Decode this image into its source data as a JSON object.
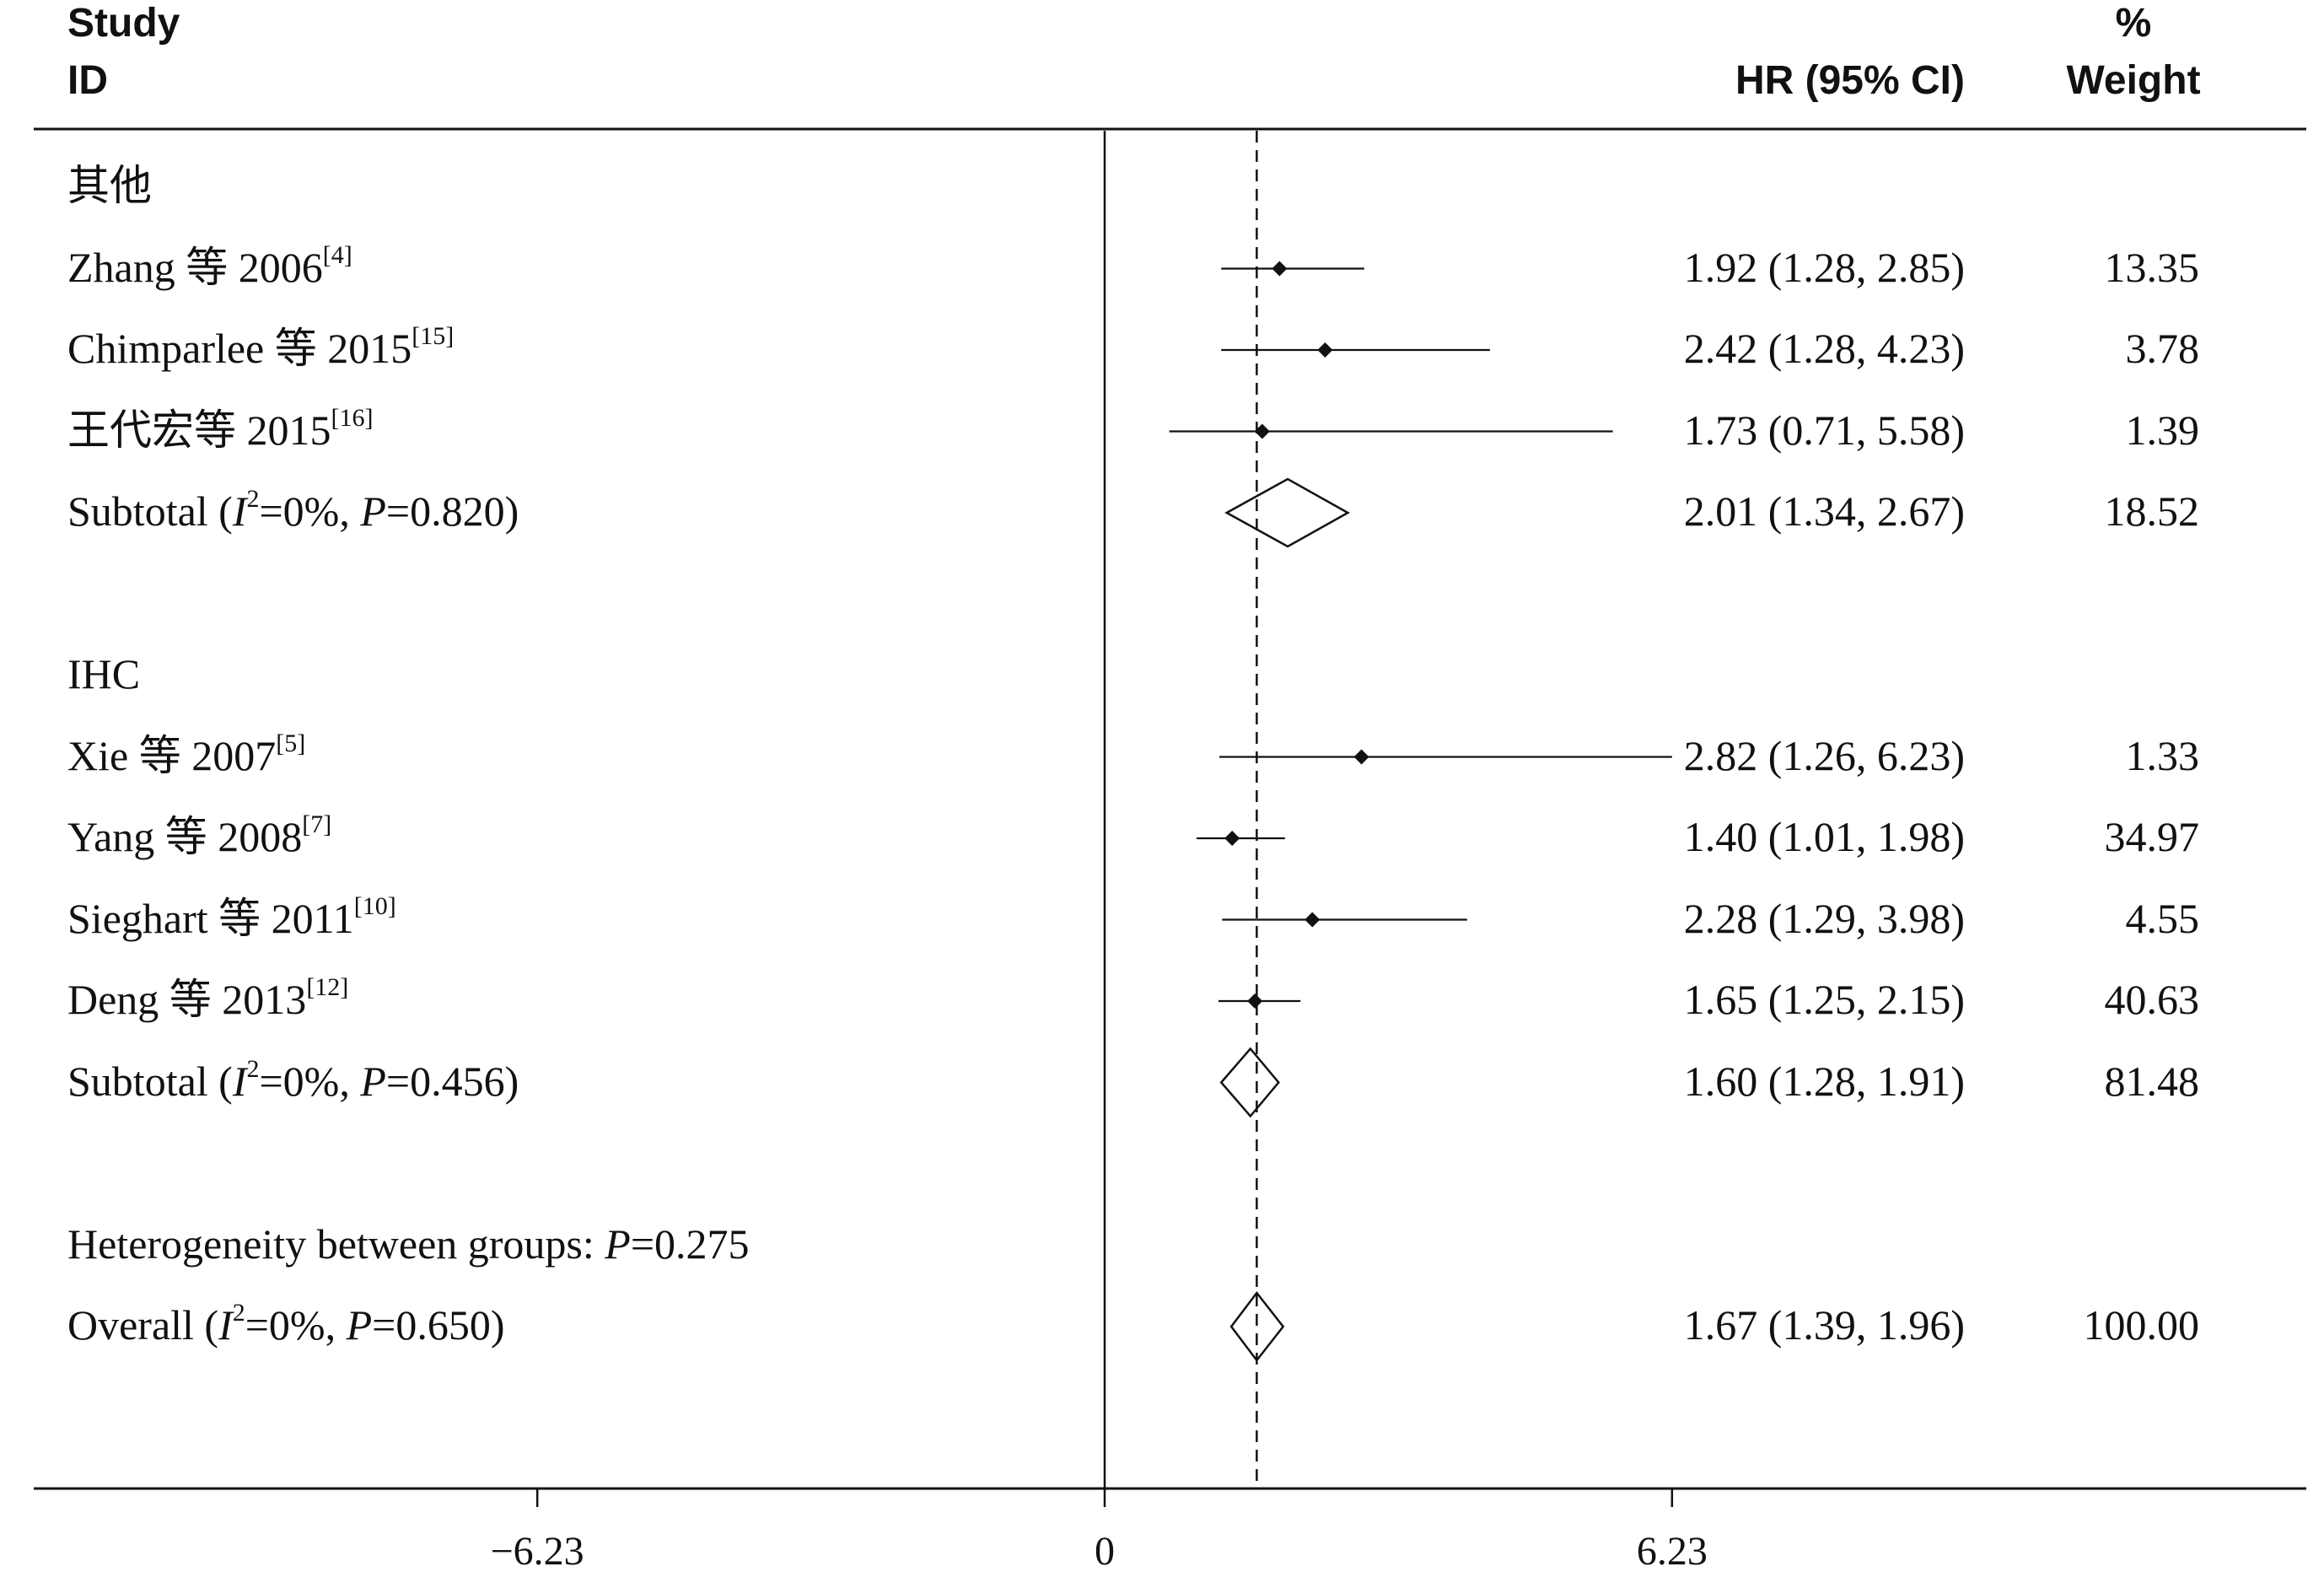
{
  "header": {
    "study": "Study",
    "id": "ID",
    "hr": "HR (95% CI)",
    "pct": "%",
    "weight": "Weight"
  },
  "chart_data": {
    "type": "forest",
    "measure": "HR",
    "x_axis": {
      "ticks": [
        -6.23,
        0,
        6.23
      ],
      "tick_labels": [
        "−6.23",
        "0",
        "6.23"
      ],
      "xlim": [
        -12.4,
        13.4
      ]
    },
    "overall_line": 1.67,
    "groups": [
      {
        "label": "其他",
        "studies": [
          {
            "name": "Zhang 等 2006",
            "ref": "[4]",
            "hr": 1.92,
            "lo": 1.28,
            "hi": 2.85,
            "hr_ci": "1.92 (1.28, 2.85)",
            "weight": "13.35"
          },
          {
            "name": "Chimparlee 等 2015",
            "ref": "[15]",
            "hr": 2.42,
            "lo": 1.28,
            "hi": 4.23,
            "hr_ci": "2.42 (1.28, 4.23)",
            "weight": "3.78"
          },
          {
            "name": "王代宏等 2015",
            "ref": "[16]",
            "hr": 1.73,
            "lo": 0.71,
            "hi": 5.58,
            "hr_ci": "1.73 (0.71, 5.58)",
            "weight": "1.39"
          }
        ],
        "subtotal": {
          "label": "Subtotal",
          "i2": "0%",
          "p": "0.820",
          "hr": 2.01,
          "lo": 1.34,
          "hi": 2.67,
          "hr_ci": "2.01 (1.34, 2.67)",
          "weight": "18.52"
        }
      },
      {
        "label": "IHC",
        "studies": [
          {
            "name": "Xie 等 2007",
            "ref": "[5]",
            "hr": 2.82,
            "lo": 1.26,
            "hi": 6.23,
            "hr_ci": "2.82 (1.26, 6.23)",
            "weight": "1.33"
          },
          {
            "name": "Yang 等 2008",
            "ref": "[7]",
            "hr": 1.4,
            "lo": 1.01,
            "hi": 1.98,
            "hr_ci": "1.40 (1.01, 1.98)",
            "weight": "34.97"
          },
          {
            "name": "Sieghart 等 2011",
            "ref": "[10]",
            "hr": 2.28,
            "lo": 1.29,
            "hi": 3.98,
            "hr_ci": "2.28 (1.29, 3.98)",
            "weight": "4.55"
          },
          {
            "name": "Deng 等 2013",
            "ref": "[12]",
            "hr": 1.65,
            "lo": 1.25,
            "hi": 2.15,
            "hr_ci": "1.65 (1.25, 2.15)",
            "weight": "40.63"
          }
        ],
        "subtotal": {
          "label": "Subtotal",
          "i2": "0%",
          "p": "0.456",
          "hr": 1.6,
          "lo": 1.28,
          "hi": 1.91,
          "hr_ci": "1.60 (1.28, 1.91)",
          "weight": "81.48"
        }
      }
    ],
    "heterogeneity": {
      "text": "Heterogeneity between groups: ",
      "p": "0.275"
    },
    "overall": {
      "label": "Overall",
      "i2": "0%",
      "p": "0.650",
      "hr": 1.67,
      "lo": 1.39,
      "hi": 1.96,
      "hr_ci": "1.67 (1.39, 1.96)",
      "weight": "100.00"
    }
  }
}
